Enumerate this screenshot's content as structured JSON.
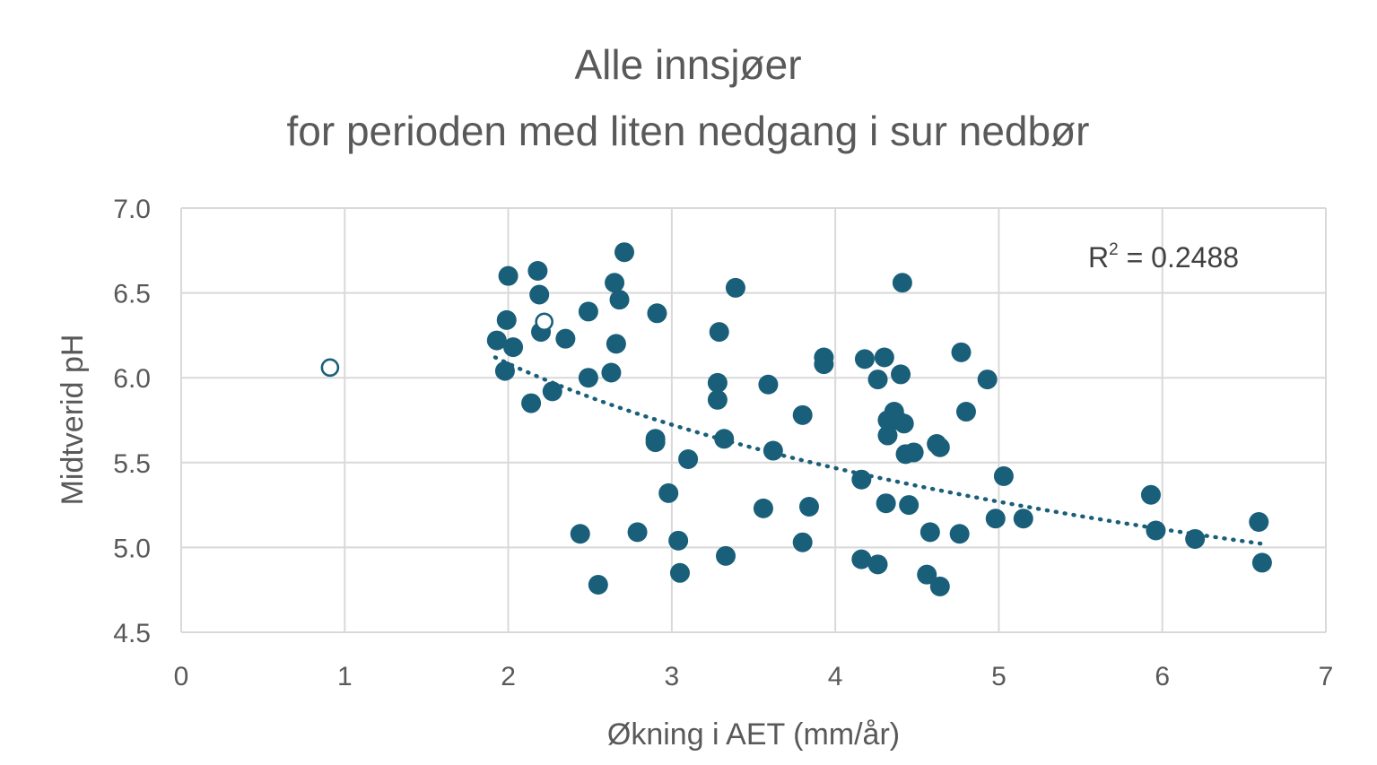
{
  "chart_data": {
    "type": "scatter",
    "title_lines": [
      "Alle innsjøer",
      "for perioden med liten nedgang i sur nedbør"
    ],
    "xlabel": "Økning i AET (mm/år)",
    "ylabel": "Midtverid pH",
    "xlim": [
      0,
      7
    ],
    "ylim": [
      4.5,
      7.0
    ],
    "x_ticks": [
      0,
      1,
      2,
      3,
      4,
      5,
      6,
      7
    ],
    "y_ticks": [
      4.5,
      5.0,
      5.5,
      6.0,
      6.5,
      7.0
    ],
    "y_tick_labels": [
      "4.5",
      "5.0",
      "5.5",
      "6.0",
      "6.5",
      "7.0"
    ],
    "grid": true,
    "colors": {
      "marker": "#1a5f7a",
      "grid": "#d9d9d9",
      "text": "#595959"
    },
    "annotation": {
      "prefix": "R",
      "superscript": "2",
      "suffix": " = 0.2488"
    },
    "trendline": {
      "style": "dotted",
      "x_range": [
        1.92,
        6.62
      ],
      "y_start": 6.12,
      "y_end": 5.02
    },
    "series": [
      {
        "marker": "filled-circle",
        "points": [
          [
            1.93,
            6.22
          ],
          [
            1.99,
            6.34
          ],
          [
            2.0,
            6.6
          ],
          [
            1.98,
            6.04
          ],
          [
            2.03,
            6.18
          ],
          [
            2.14,
            5.85
          ],
          [
            2.18,
            6.63
          ],
          [
            2.19,
            6.49
          ],
          [
            2.2,
            6.27
          ],
          [
            2.27,
            5.92
          ],
          [
            2.35,
            6.23
          ],
          [
            2.44,
            5.08
          ],
          [
            2.49,
            6.39
          ],
          [
            2.49,
            6.0
          ],
          [
            2.55,
            4.78
          ],
          [
            2.63,
            6.03
          ],
          [
            2.65,
            6.56
          ],
          [
            2.66,
            6.2
          ],
          [
            2.68,
            6.46
          ],
          [
            2.71,
            6.74
          ],
          [
            2.79,
            5.09
          ],
          [
            2.91,
            6.38
          ],
          [
            2.9,
            5.64
          ],
          [
            2.9,
            5.62
          ],
          [
            2.98,
            5.32
          ],
          [
            3.04,
            5.04
          ],
          [
            3.05,
            4.85
          ],
          [
            3.1,
            5.52
          ],
          [
            3.29,
            6.27
          ],
          [
            3.28,
            5.97
          ],
          [
            3.28,
            5.87
          ],
          [
            3.32,
            5.64
          ],
          [
            3.33,
            4.95
          ],
          [
            3.39,
            6.53
          ],
          [
            3.56,
            5.23
          ],
          [
            3.59,
            5.96
          ],
          [
            3.62,
            5.57
          ],
          [
            3.8,
            5.78
          ],
          [
            3.8,
            5.03
          ],
          [
            3.84,
            5.24
          ],
          [
            3.93,
            6.12
          ],
          [
            3.93,
            6.08
          ],
          [
            4.16,
            5.4
          ],
          [
            4.16,
            4.93
          ],
          [
            4.18,
            6.11
          ],
          [
            4.26,
            5.99
          ],
          [
            4.26,
            4.9
          ],
          [
            4.3,
            6.12
          ],
          [
            4.31,
            5.26
          ],
          [
            4.32,
            5.75
          ],
          [
            4.32,
            5.66
          ],
          [
            4.36,
            5.8
          ],
          [
            4.38,
            5.75
          ],
          [
            4.4,
            6.02
          ],
          [
            4.41,
            6.56
          ],
          [
            4.42,
            5.73
          ],
          [
            4.43,
            5.55
          ],
          [
            4.45,
            5.25
          ],
          [
            4.48,
            5.56
          ],
          [
            4.56,
            4.84
          ],
          [
            4.58,
            5.09
          ],
          [
            4.62,
            5.61
          ],
          [
            4.64,
            5.59
          ],
          [
            4.64,
            4.77
          ],
          [
            4.76,
            5.08
          ],
          [
            4.77,
            6.15
          ],
          [
            4.8,
            5.8
          ],
          [
            4.93,
            5.99
          ],
          [
            4.98,
            5.17
          ],
          [
            5.03,
            5.42
          ],
          [
            5.15,
            5.17
          ],
          [
            5.93,
            5.31
          ],
          [
            5.96,
            5.1
          ],
          [
            6.2,
            5.05
          ],
          [
            6.59,
            5.15
          ],
          [
            6.61,
            4.91
          ]
        ]
      },
      {
        "marker": "open-circle",
        "points": [
          [
            0.91,
            6.06
          ],
          [
            2.22,
            6.33
          ]
        ]
      }
    ]
  }
}
